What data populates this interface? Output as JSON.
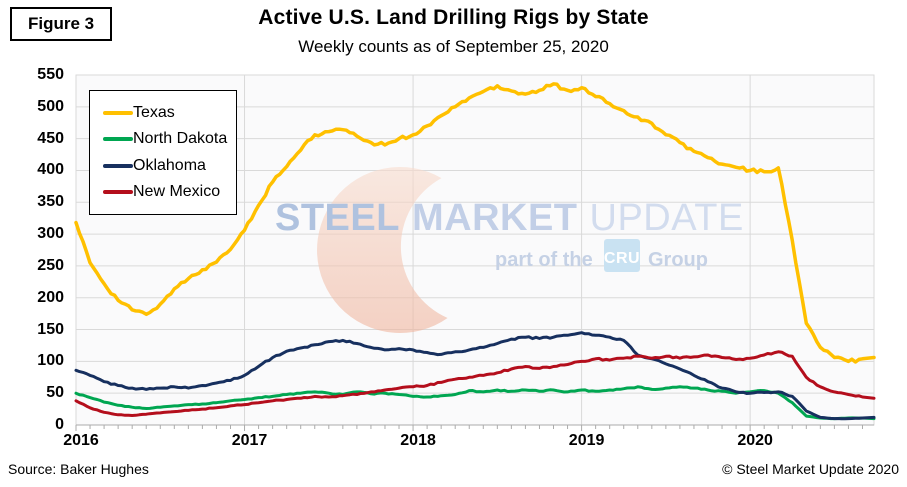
{
  "figure_label": "Figure 3",
  "title": "Active U.S. Land Drilling Rigs by State",
  "subtitle": "Weekly counts as of September 25, 2020",
  "footer": {
    "source": "Source: Baker Hughes",
    "copyright": "© Steel Market Update 2020"
  },
  "watermark": {
    "word1": "STEEL",
    "word2": "MARKET",
    "word3": "UPDATE",
    "tagline_prefix": "part of the",
    "tagline_box": "CRU",
    "tagline_suffix": "Group",
    "word1_color": "#AFC2DF",
    "word2_color": "#C2CFE7",
    "word3_color": "#D2DCEE",
    "tagline_color": "#C5D1E5",
    "box_color": "#C9E2F2",
    "crescent_top_color": "#F8DCCE",
    "crescent_bottom_color": "#EFB59E"
  },
  "chart_data": {
    "type": "line",
    "title": "Active U.S. Land Drilling Rigs by State",
    "subtitle": "Weekly counts as of September 25, 2020",
    "xlabel": "",
    "ylabel": "",
    "grid": true,
    "legend_position": "top-left",
    "xlim": [
      2016,
      2020.735
    ],
    "ylim": [
      0,
      550
    ],
    "yticks": [
      550,
      500,
      450,
      400,
      350,
      300,
      250,
      200,
      150,
      100,
      50,
      0
    ],
    "xticks": [
      {
        "label": "2016",
        "year": 2016
      },
      {
        "label": "2017",
        "year": 2017
      },
      {
        "label": "2018",
        "year": 2018
      },
      {
        "label": "2019",
        "year": 2019
      },
      {
        "label": "2020",
        "year": 2020
      }
    ],
    "x": [
      2016.0,
      2016.083,
      2016.167,
      2016.25,
      2016.333,
      2016.417,
      2016.5,
      2016.583,
      2016.667,
      2016.75,
      2016.833,
      2016.917,
      2017.0,
      2017.083,
      2017.167,
      2017.25,
      2017.333,
      2017.417,
      2017.5,
      2017.583,
      2017.667,
      2017.75,
      2017.833,
      2017.917,
      2018.0,
      2018.083,
      2018.167,
      2018.25,
      2018.333,
      2018.417,
      2018.5,
      2018.583,
      2018.667,
      2018.75,
      2018.833,
      2018.917,
      2019.0,
      2019.083,
      2019.167,
      2019.25,
      2019.333,
      2019.417,
      2019.5,
      2019.583,
      2019.667,
      2019.75,
      2019.833,
      2019.917,
      2020.0,
      2020.083,
      2020.167,
      2020.25,
      2020.333,
      2020.417,
      2020.5,
      2020.583,
      2020.667,
      2020.735
    ],
    "series": [
      {
        "name": "Texas",
        "color": "#FFC000",
        "width": 3.5,
        "noise": 6,
        "values": [
          318,
          255,
          222,
          196,
          181,
          174,
          190,
          214,
          230,
          244,
          256,
          276,
          306,
          345,
          382,
          406,
          432,
          456,
          461,
          464,
          454,
          444,
          440,
          450,
          456,
          470,
          486,
          500,
          514,
          524,
          533,
          525,
          520,
          526,
          536,
          526,
          530,
          516,
          505,
          494,
          484,
          474,
          456,
          444,
          430,
          420,
          410,
          405,
          400,
          398,
          404,
          290,
          160,
          122,
          106,
          100,
          104,
          106
        ]
      },
      {
        "name": "North Dakota",
        "color": "#00A651",
        "width": 3,
        "noise": 2,
        "values": [
          50,
          43,
          36,
          31,
          28,
          26,
          28,
          30,
          32,
          33,
          35,
          38,
          40,
          43,
          45,
          48,
          50,
          52,
          50,
          48,
          52,
          49,
          50,
          48,
          45,
          44,
          46,
          48,
          54,
          52,
          55,
          53,
          55,
          53,
          55,
          52,
          55,
          53,
          55,
          57,
          60,
          56,
          58,
          60,
          58,
          55,
          53,
          50,
          52,
          54,
          50,
          35,
          14,
          11,
          10,
          11,
          11,
          10
        ]
      },
      {
        "name": "Oklahoma",
        "color": "#17305F",
        "width": 3,
        "noise": 2.5,
        "values": [
          86,
          78,
          68,
          62,
          58,
          56,
          58,
          60,
          58,
          62,
          66,
          70,
          78,
          92,
          106,
          116,
          121,
          126,
          131,
          133,
          128,
          122,
          118,
          120,
          118,
          114,
          111,
          115,
          118,
          122,
          128,
          135,
          138,
          136,
          138,
          141,
          145,
          141,
          138,
          133,
          110,
          104,
          96,
          88,
          78,
          68,
          58,
          52,
          50,
          51,
          52,
          45,
          22,
          12,
          10,
          10,
          11,
          12
        ]
      },
      {
        "name": "New Mexico",
        "color": "#B40E1C",
        "width": 3,
        "noise": 2.5,
        "values": [
          38,
          27,
          20,
          16,
          15,
          17,
          19,
          21,
          23,
          25,
          27,
          30,
          32,
          35,
          38,
          40,
          42,
          45,
          44,
          46,
          48,
          52,
          55,
          58,
          60,
          62,
          67,
          72,
          75,
          78,
          82,
          88,
          92,
          89,
          92,
          95,
          100,
          104,
          102,
          105,
          108,
          105,
          108,
          105,
          107,
          110,
          106,
          103,
          105,
          110,
          115,
          108,
          75,
          60,
          52,
          48,
          44,
          42
        ]
      }
    ]
  }
}
